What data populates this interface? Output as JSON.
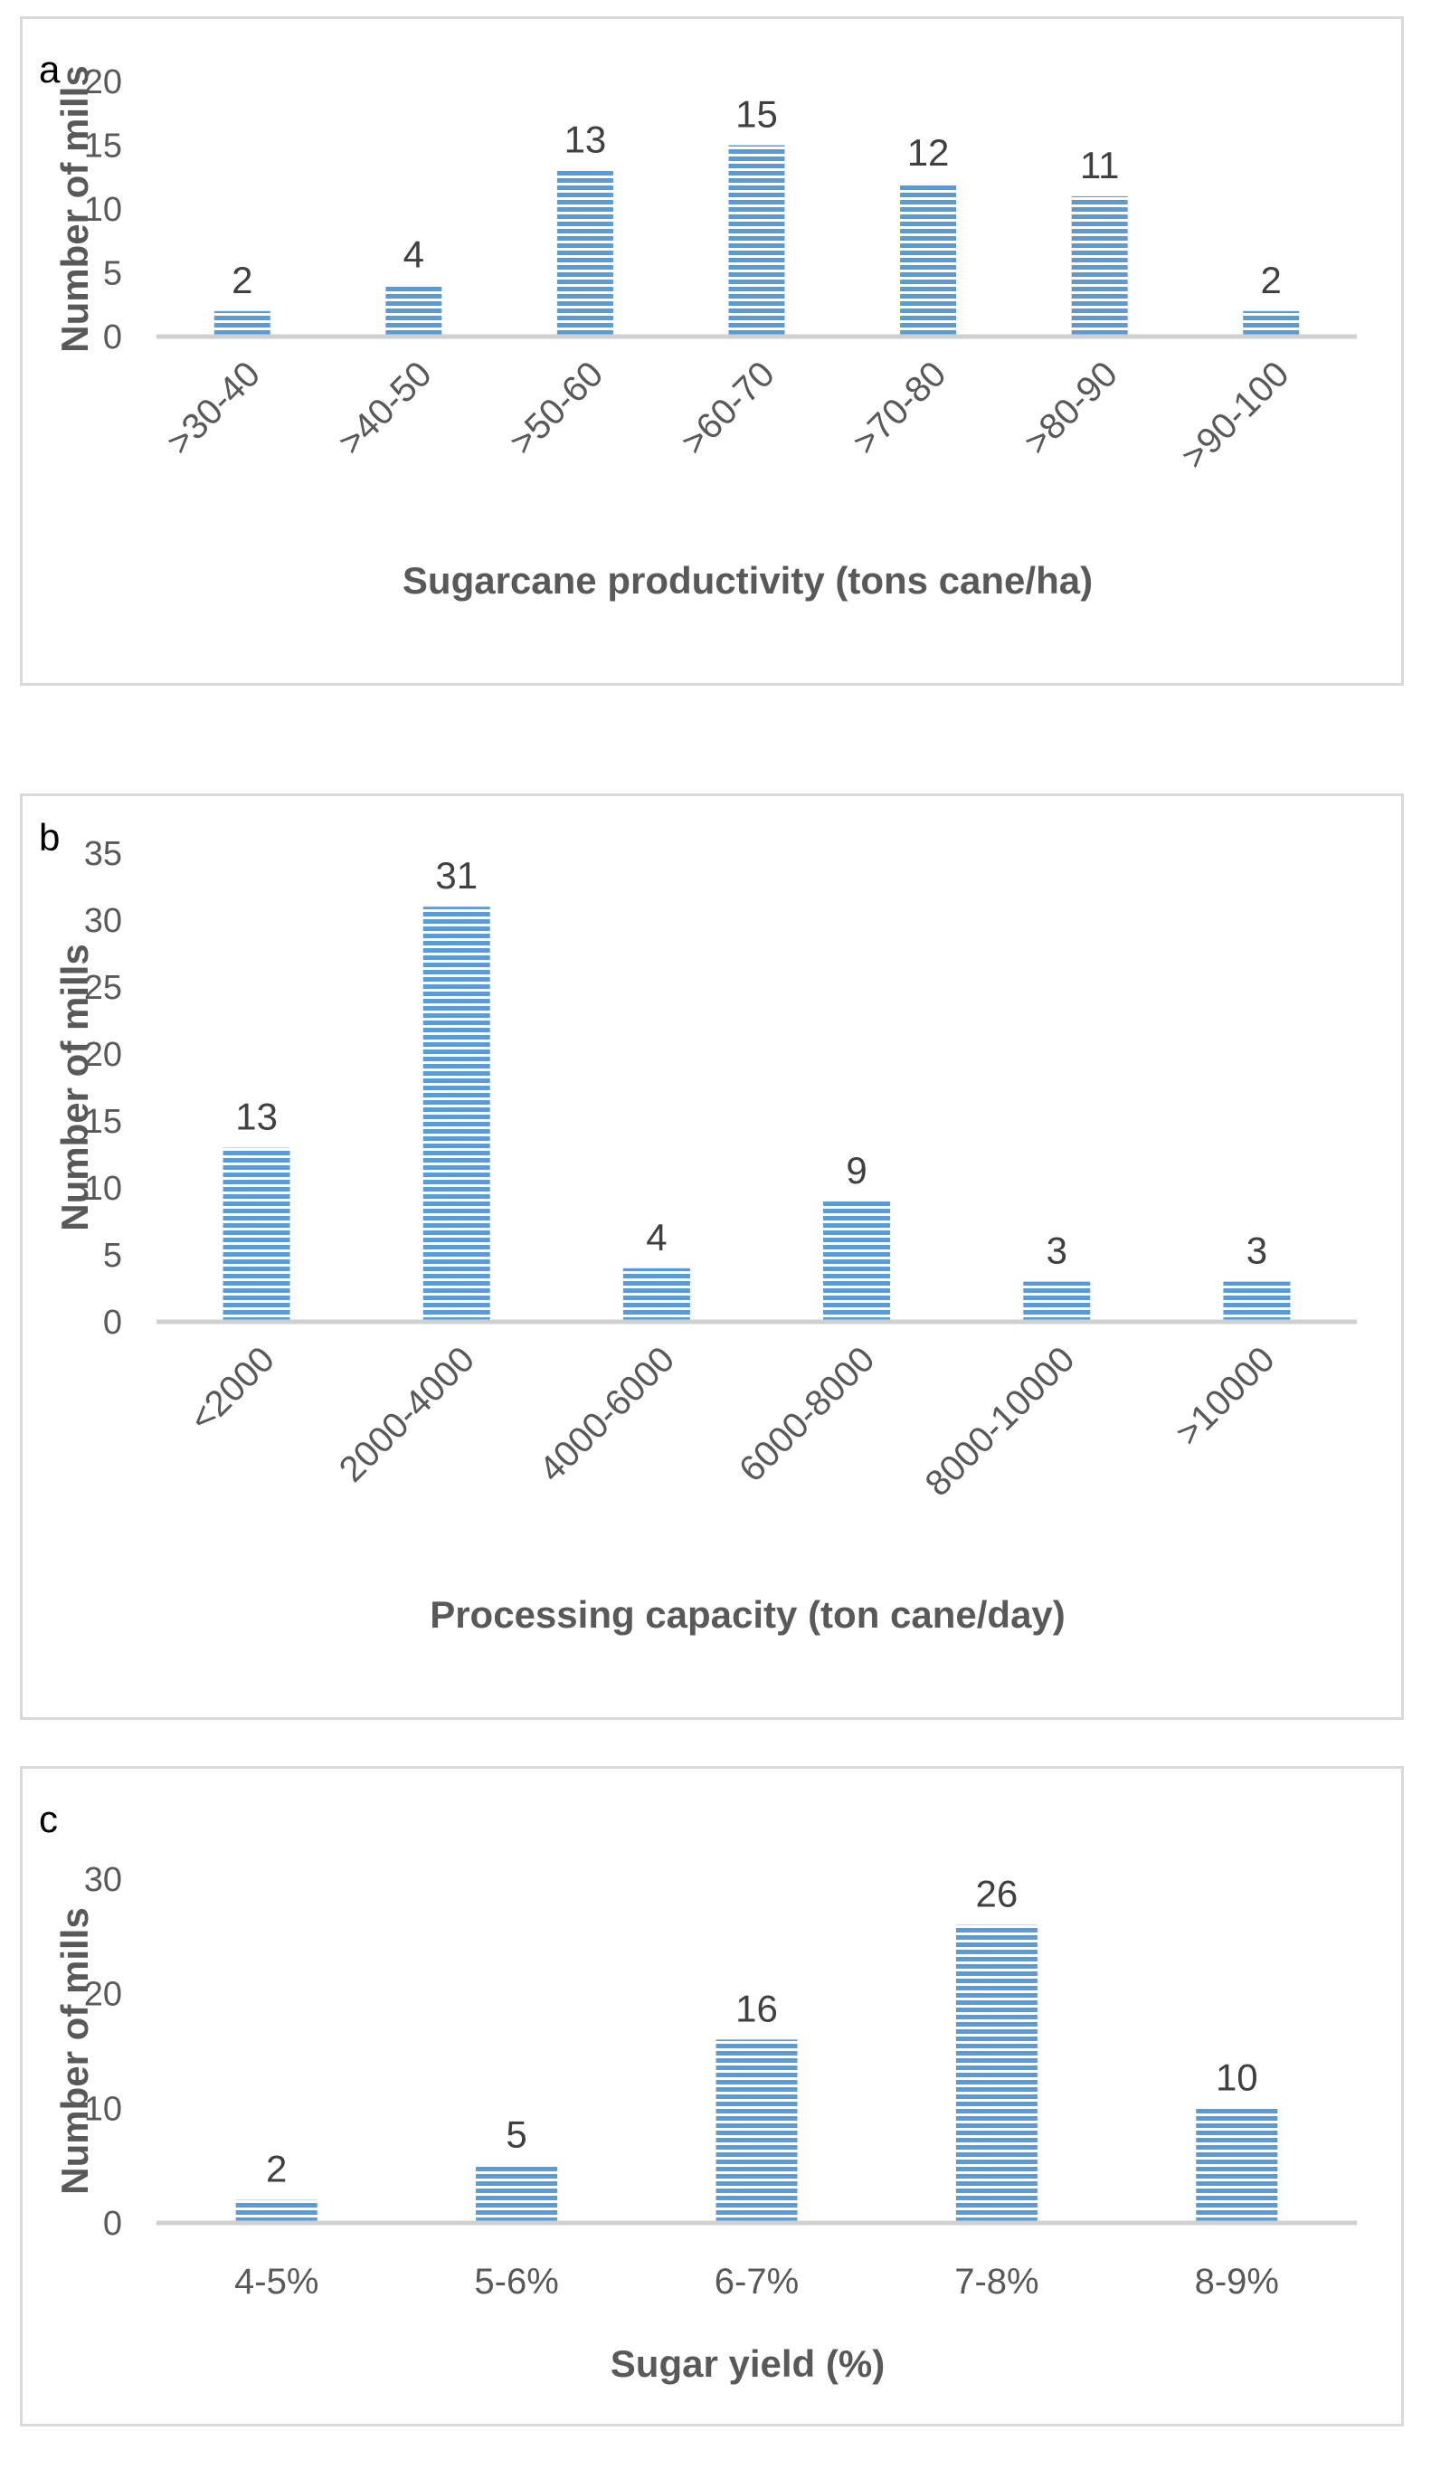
{
  "chart_data": [
    {
      "type": "bar",
      "panel_letter": "a",
      "categories": [
        ">30-40",
        ">40-50",
        ">50-60",
        ">60-70",
        ">70-80",
        ">80-90",
        ">90-100"
      ],
      "values": [
        2,
        4,
        13,
        15,
        12,
        11,
        2
      ],
      "data_labels": [
        "2",
        "4",
        "13",
        "15",
        "12",
        "11",
        "2"
      ],
      "xlabel": "Sugarcane productivity (tons cane/ha)",
      "ylabel": "Number of mills",
      "ylim": [
        0,
        20
      ],
      "yticks": [
        0,
        5,
        10,
        15,
        20
      ],
      "ytick_labels": [
        "0",
        "5",
        "10",
        "15",
        "20"
      ],
      "grid": false,
      "bar_color": "#5b9bd5",
      "bar_pattern": "horizontal stripes"
    },
    {
      "type": "bar",
      "panel_letter": "b",
      "categories": [
        "<2000",
        "2000-4000",
        "4000-6000",
        "6000-8000",
        "8000-10000",
        ">10000"
      ],
      "values": [
        13,
        31,
        4,
        9,
        3,
        3
      ],
      "data_labels": [
        "13",
        "31",
        "4",
        "9",
        "3",
        "3"
      ],
      "xlabel": "Processing capacity (ton cane/day)",
      "ylabel": "Number of mills",
      "ylim": [
        0,
        35
      ],
      "yticks": [
        0,
        5,
        10,
        15,
        20,
        25,
        30,
        35
      ],
      "ytick_labels": [
        "0",
        "5",
        "10",
        "15",
        "20",
        "25",
        "30",
        "35"
      ],
      "grid": false,
      "bar_color": "#5b9bd5",
      "bar_pattern": "horizontal stripes"
    },
    {
      "type": "bar",
      "panel_letter": "c",
      "categories": [
        "4-5%",
        "5-6%",
        "6-7%",
        "7-8%",
        "8-9%"
      ],
      "values": [
        2,
        5,
        16,
        26,
        10
      ],
      "data_labels": [
        "2",
        "5",
        "16",
        "26",
        "10"
      ],
      "xlabel": "Sugar yield (%)",
      "ylabel": "Number of mills",
      "ylim": [
        0,
        30
      ],
      "yticks": [
        0,
        10,
        20,
        30
      ],
      "ytick_labels": [
        "0",
        "10",
        "20",
        "30"
      ],
      "grid": false,
      "bar_color": "#5b9bd5",
      "bar_pattern": "horizontal stripes"
    }
  ]
}
